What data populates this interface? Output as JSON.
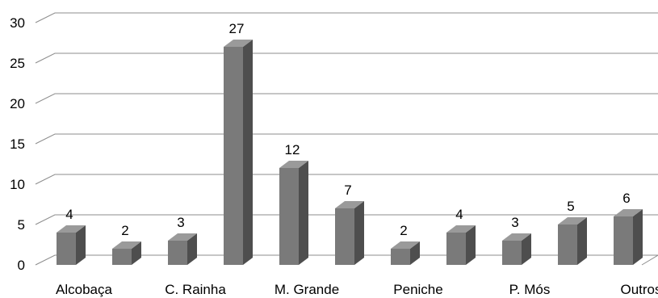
{
  "chart_data": {
    "type": "bar",
    "style": "3d-column",
    "title": "",
    "xlabel": "",
    "ylabel": "",
    "ylim": [
      0,
      30
    ],
    "yticks": [
      0,
      5,
      10,
      15,
      20,
      25,
      30
    ],
    "grid": true,
    "legend": "none",
    "bar_color": "#7a7a7a",
    "bar_side_color": "#4e4e4e",
    "bar_top_color": "#9a9a9a",
    "categories": [
      "",
      "",
      "",
      "",
      "",
      "",
      "",
      "",
      "",
      "",
      ""
    ],
    "x_tick_labels": [
      "Alcobaça",
      "C. Rainha",
      "M. Grande",
      "Peniche",
      "P. Mós",
      "Outros"
    ],
    "values": [
      4,
      2,
      3,
      27,
      12,
      7,
      2,
      4,
      3,
      5,
      6
    ]
  }
}
